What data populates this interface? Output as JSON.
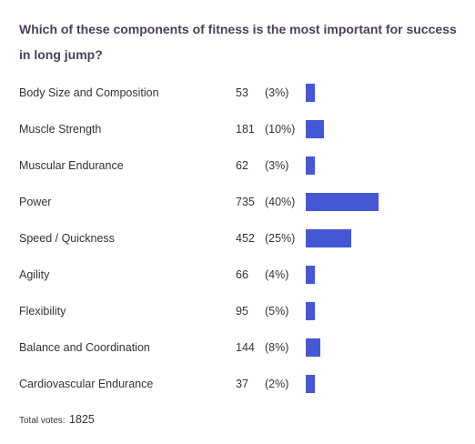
{
  "poll": {
    "question": "Which of these components of fitness is the most important for success in long jump?",
    "bar_color": "#4657d4",
    "options": [
      {
        "label": "Body Size and Composition",
        "votes": "53",
        "percent": "(3%)",
        "share": 0.03
      },
      {
        "label": "Muscle Strength",
        "votes": "181",
        "percent": "(10%)",
        "share": 0.1
      },
      {
        "label": "Muscular Endurance",
        "votes": "62",
        "percent": "(3%)",
        "share": 0.03
      },
      {
        "label": "Power",
        "votes": "735",
        "percent": "(40%)",
        "share": 0.4
      },
      {
        "label": "Speed / Quickness",
        "votes": "452",
        "percent": "(25%)",
        "share": 0.25
      },
      {
        "label": "Agility",
        "votes": "66",
        "percent": "(4%)",
        "share": 0.04
      },
      {
        "label": "Flexibility",
        "votes": "95",
        "percent": "(5%)",
        "share": 0.05
      },
      {
        "label": "Balance and Coordination",
        "votes": "144",
        "percent": "(8%)",
        "share": 0.08
      },
      {
        "label": "Cardiovascular Endurance",
        "votes": "37",
        "percent": "(2%)",
        "share": 0.02
      }
    ],
    "total_label": "Total votes:",
    "total_value": "1825"
  }
}
